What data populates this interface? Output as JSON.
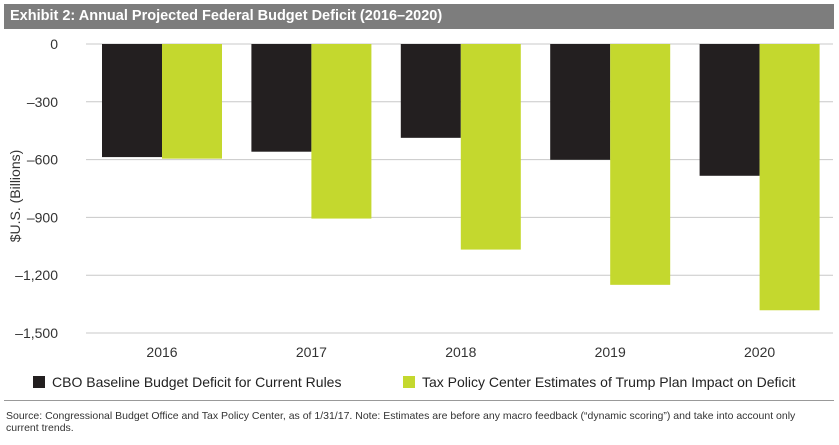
{
  "header": {
    "title": "Exhibit 2: Annual Projected Federal Budget Deficit (2016–2020)"
  },
  "colors": {
    "cbo": "#231f20",
    "tpc": "#c4d82e",
    "title_bg": "#7d7d7d"
  },
  "chart_data": {
    "type": "bar",
    "categories": [
      "2016",
      "2017",
      "2018",
      "2019",
      "2020"
    ],
    "series": [
      {
        "name": "CBO Baseline Budget Deficit for Current Rules",
        "values": [
          -587,
          -559,
          -487,
          -601,
          -684
        ]
      },
      {
        "name": "Tax Policy Center Estimates of Trump Plan Impact on Deficit",
        "values": [
          -595,
          -906,
          -1067,
          -1250,
          -1382
        ]
      }
    ],
    "ylabel": "$U.S. (Billions)",
    "xlabel": "",
    "ylim": [
      -1500,
      0
    ],
    "yticks": [
      0,
      -300,
      -600,
      -900,
      -1200,
      -1500
    ],
    "ytick_labels": [
      "0",
      "–300",
      "–600",
      "–900",
      "–1,200",
      "–1,500"
    ],
    "grid": true,
    "legend_position": "bottom"
  },
  "legend": [
    {
      "label": "CBO Baseline Budget Deficit for Current Rules"
    },
    {
      "label": "Tax Policy Center Estimates of Trump Plan Impact on Deficit"
    }
  ],
  "source": "Source: Congressional Budget Office and Tax Policy Center, as of 1/31/17. Note: Estimates are before any macro feedback (“dynamic scoring”) and take into account only current trends."
}
